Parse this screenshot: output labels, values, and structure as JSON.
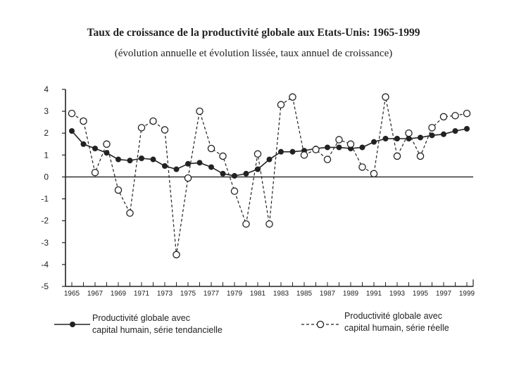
{
  "chart_data": {
    "type": "line",
    "title": "Taux de croissance de la productivité globale aux Etats-Unis: 1965-1999",
    "subtitle": "(évolution annuelle et évolution lissée, taux annuel de croissance)",
    "xlabel": "",
    "ylabel": "",
    "ylim": [
      -5,
      4
    ],
    "yticks": [
      "4",
      "3",
      "2",
      "1",
      "0",
      "-1",
      "-2",
      "-3",
      "-4",
      "-5"
    ],
    "x": [
      1965,
      1966,
      1967,
      1968,
      1969,
      1970,
      1971,
      1972,
      1973,
      1974,
      1975,
      1976,
      1977,
      1978,
      1979,
      1980,
      1981,
      1982,
      1983,
      1984,
      1985,
      1986,
      1987,
      1988,
      1989,
      1990,
      1991,
      1992,
      1993,
      1994,
      1995,
      1996,
      1997,
      1998,
      1999
    ],
    "xtick_labels": [
      "1965",
      "1967",
      "1969",
      "1971",
      "1973",
      "1975",
      "1977",
      "1979",
      "1981",
      "1983",
      "1985",
      "1987",
      "1989",
      "1991",
      "1993",
      "1995",
      "1997",
      "1999"
    ],
    "grid": false,
    "legend_position": "bottom",
    "series": [
      {
        "name": "Productivité globale avec capital humain, série tendancielle",
        "style": "solid-filled-markers",
        "color": "#222222",
        "values": [
          2.1,
          1.5,
          1.3,
          1.1,
          0.8,
          0.75,
          0.85,
          0.8,
          0.5,
          0.35,
          0.6,
          0.65,
          0.45,
          0.15,
          0.05,
          0.15,
          0.35,
          0.8,
          1.15,
          1.15,
          1.2,
          1.3,
          1.35,
          1.35,
          1.3,
          1.35,
          1.6,
          1.75,
          1.75,
          1.75,
          1.8,
          1.9,
          1.95,
          2.1,
          2.2
        ]
      },
      {
        "name": "Productivité globale avec capital humain, série réelle",
        "style": "dashed-open-markers",
        "color": "#222222",
        "values": [
          2.9,
          2.55,
          0.2,
          1.5,
          -0.6,
          -1.65,
          2.25,
          2.55,
          2.15,
          -3.55,
          -0.05,
          3.0,
          1.3,
          0.95,
          -0.65,
          -2.15,
          1.05,
          -2.15,
          3.3,
          3.65,
          1.0,
          1.25,
          0.8,
          1.7,
          1.5,
          0.45,
          0.15,
          3.65,
          0.95,
          2.0,
          0.95,
          2.25,
          2.75,
          2.8,
          2.9
        ]
      }
    ]
  }
}
